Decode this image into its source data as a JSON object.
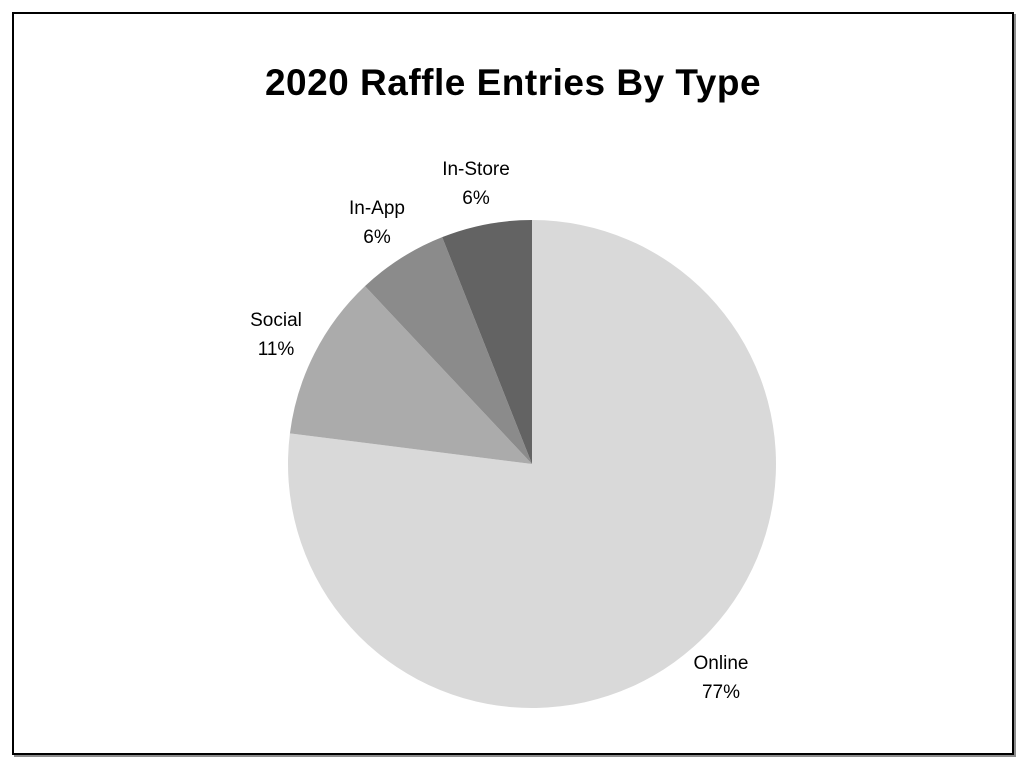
{
  "page": {
    "background_color": "#ffffff",
    "frame_border_color": "#000000"
  },
  "chart_data": {
    "type": "pie",
    "title": "2020 Raffle Entries By Type",
    "direction": "clockwise",
    "start_angle_deg": 0,
    "legend": "none",
    "labels_outside": true,
    "label_format": "name above percent",
    "slices": [
      {
        "label": "Online",
        "value": 77,
        "percent_text": "77%",
        "color": "#d9d9d9"
      },
      {
        "label": "Social",
        "value": 11,
        "percent_text": "11%",
        "color": "#ababab"
      },
      {
        "label": "In-App",
        "value": 6,
        "percent_text": "6%",
        "color": "#8b8b8b"
      },
      {
        "label": "In-Store",
        "value": 6,
        "percent_text": "6%",
        "color": "#636363"
      }
    ]
  }
}
